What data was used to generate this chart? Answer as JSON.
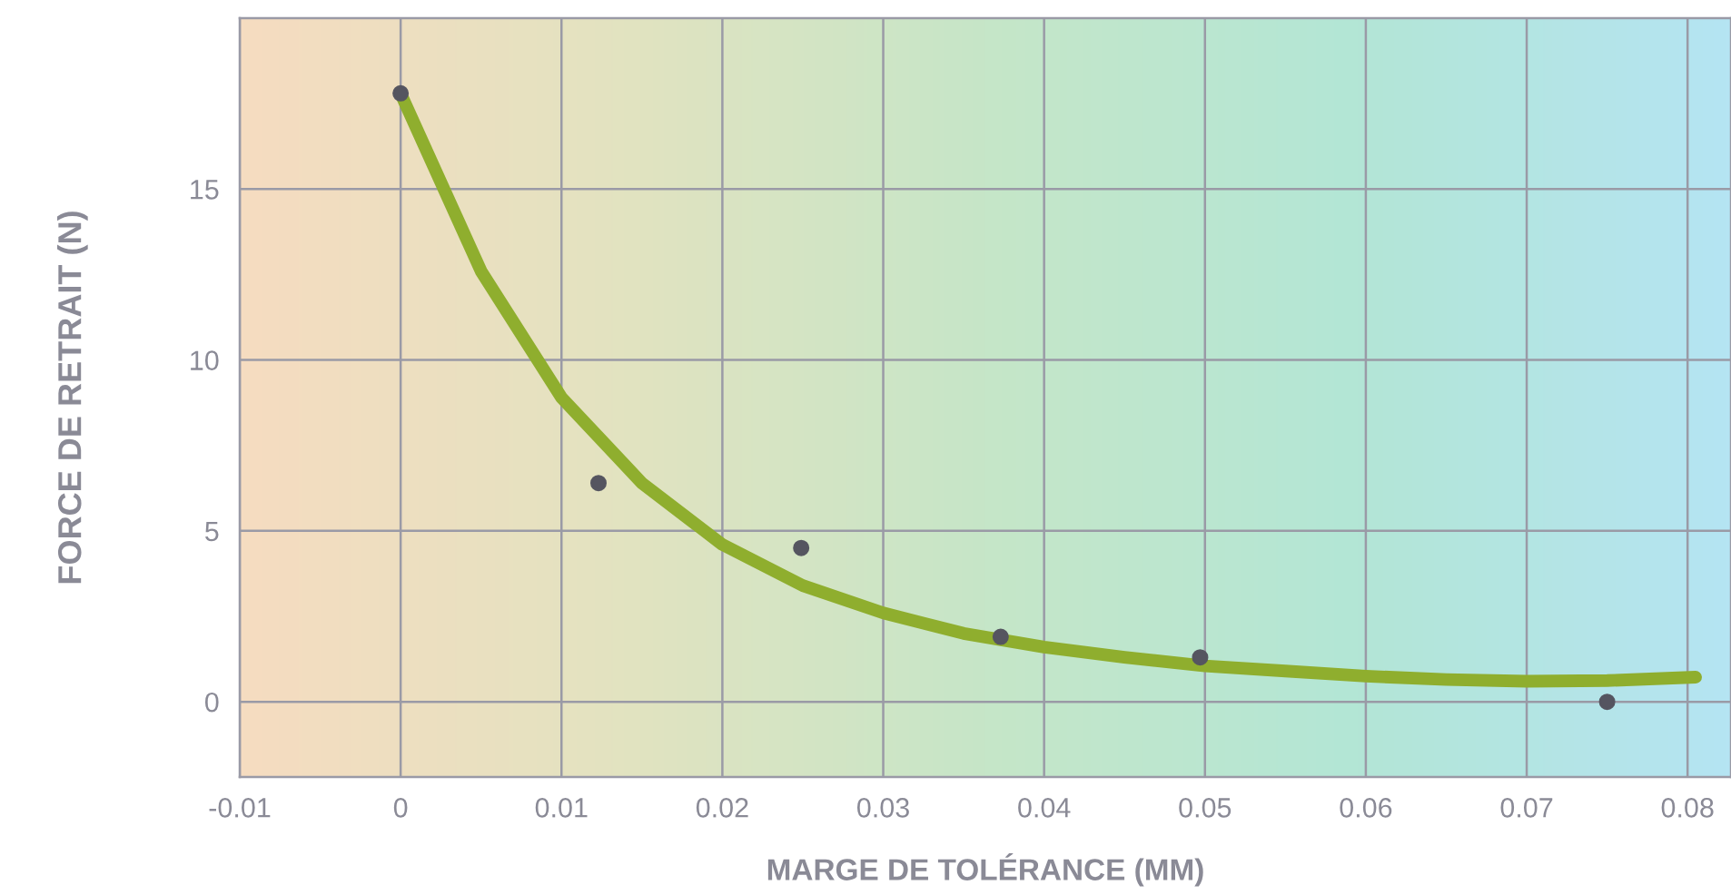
{
  "chart_data": {
    "type": "scatter",
    "xlabel": "MARGE DE TOLÉRANCE (MM)",
    "ylabel": "FORCE DE RETRAIT (N)",
    "xlim": [
      -0.01,
      0.0827
    ],
    "ylim": [
      -2.2,
      20
    ],
    "xticks": [
      -0.01,
      0,
      0.01,
      0.02,
      0.03,
      0.04,
      0.05,
      0.06,
      0.07,
      0.08
    ],
    "yticks": [
      0,
      5,
      10,
      15
    ],
    "grid": true,
    "legend": false,
    "marker": "circle",
    "series": [
      {
        "type": "line",
        "color": "#8fae2e",
        "line_style": "solid",
        "marker": "none",
        "x": [
          0,
          0.005,
          0.01,
          0.015,
          0.02,
          0.025,
          0.03,
          0.035,
          0.04,
          0.045,
          0.05,
          0.055,
          0.06,
          0.065,
          0.07,
          0.075,
          0.0805
        ],
        "values": [
          17.8,
          12.6,
          8.9,
          6.4,
          4.6,
          3.4,
          2.6,
          2.0,
          1.6,
          1.3,
          1.05,
          0.9,
          0.75,
          0.65,
          0.6,
          0.62,
          0.72
        ]
      },
      {
        "color": "#555560",
        "x": [
          0,
          0.0123,
          0.0249,
          0.0373,
          0.0497,
          0.075
        ],
        "values": [
          17.8,
          6.4,
          4.5,
          1.9,
          1.3,
          0.0
        ]
      }
    ]
  }
}
